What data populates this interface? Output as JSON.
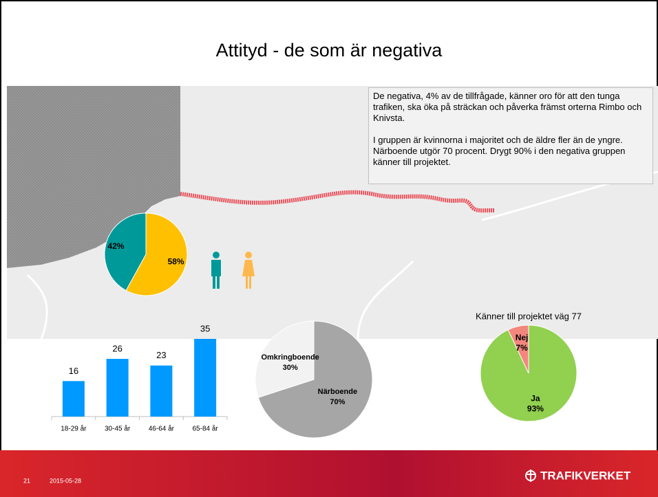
{
  "title": "Attityd - de som är negativa",
  "text": {
    "paragraphs": [
      "De negativa, 4% av de tillfrågade, känner oro för att den tunga trafiken, ska öka på sträckan och påverka främst orterna Rimbo och Knivsta.",
      "I gruppen är kvinnorna i majoritet och de äldre fler än de yngre. Närboende utgör 70 procent. Drygt 90% i den negativa gruppen känner till projektet."
    ]
  },
  "footer": {
    "page": "21",
    "date": "2015-05-28",
    "logo": "TRAFIKVERKET"
  },
  "chart_data": [
    {
      "type": "pie",
      "values": [
        58,
        42
      ],
      "value_labels": [
        "58%",
        "42%"
      ],
      "colors": [
        "#ffc000",
        "#009999"
      ]
    },
    {
      "type": "bar",
      "categories": [
        "18-29 år",
        "30-45 år",
        "46-64 år",
        "65-84 år"
      ],
      "values": [
        16,
        26,
        23,
        35
      ],
      "color": "#0099ff"
    },
    {
      "type": "pie",
      "categories": [
        "Närboende",
        "Omkringboende"
      ],
      "values": [
        70,
        30
      ],
      "value_labels": [
        "70%",
        "30%"
      ],
      "colors": [
        "#a6a6a6",
        "#f2f2f2"
      ]
    },
    {
      "type": "pie",
      "title": "Känner till projektet väg 77",
      "categories": [
        "Ja",
        "Nej"
      ],
      "values": [
        93,
        7
      ],
      "value_labels": [
        "93%",
        "7%"
      ],
      "colors": [
        "#92d050",
        "#f4877d"
      ]
    }
  ]
}
